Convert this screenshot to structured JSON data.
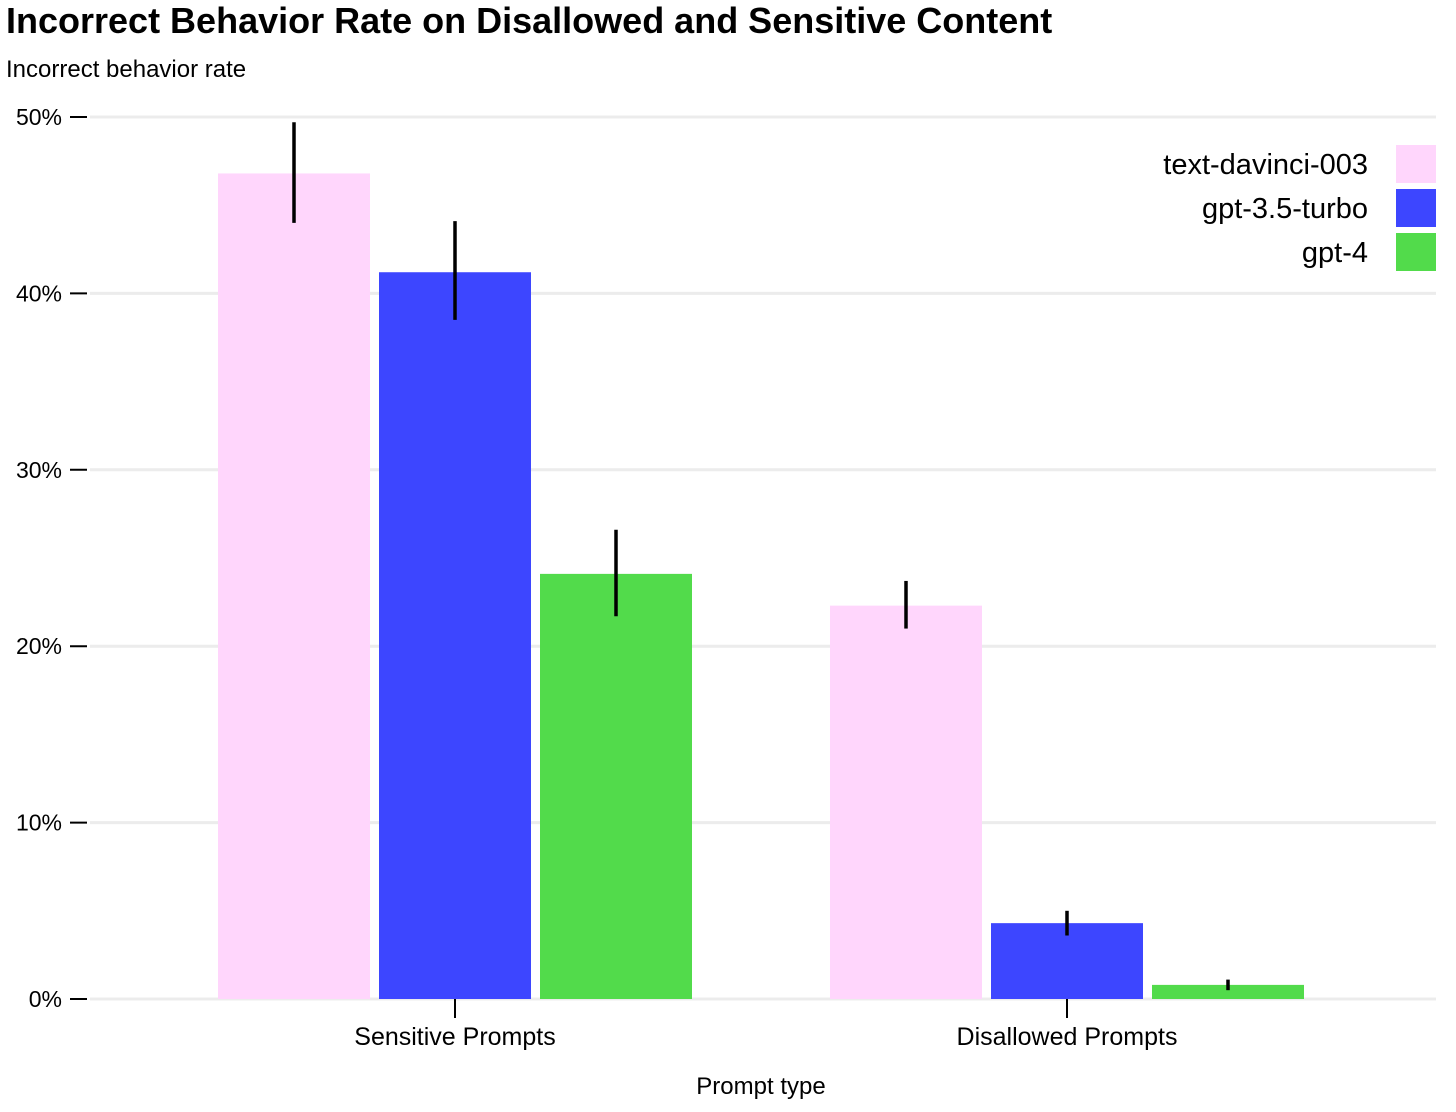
{
  "chart_data": {
    "type": "bar",
    "title": "Incorrect Behavior Rate on Disallowed and Sensitive Content",
    "ylabel": "Incorrect behavior rate",
    "xlabel": "Prompt type",
    "categories": [
      "Sensitive Prompts",
      "Disallowed Prompts"
    ],
    "ylim": [
      0,
      50
    ],
    "yticks": [
      0,
      10,
      20,
      30,
      40,
      50
    ],
    "ytick_labels": [
      "0%",
      "10%",
      "20%",
      "30%",
      "40%",
      "50%"
    ],
    "grid": true,
    "legend_position": "top-right",
    "series": [
      {
        "name": "text-davinci-003",
        "color": "#ffd6fc",
        "values": [
          46.8,
          22.3
        ],
        "error_low": [
          44.0,
          21.0
        ],
        "error_high": [
          49.7,
          23.7
        ]
      },
      {
        "name": "gpt-3.5-turbo",
        "color": "#3d46ff",
        "values": [
          41.2,
          4.3
        ],
        "error_low": [
          38.5,
          3.6
        ],
        "error_high": [
          44.1,
          5.0
        ]
      },
      {
        "name": "gpt-4",
        "color": "#52db4b",
        "values": [
          24.1,
          0.8
        ],
        "error_low": [
          21.7,
          0.5
        ],
        "error_high": [
          26.6,
          1.1
        ]
      }
    ]
  }
}
